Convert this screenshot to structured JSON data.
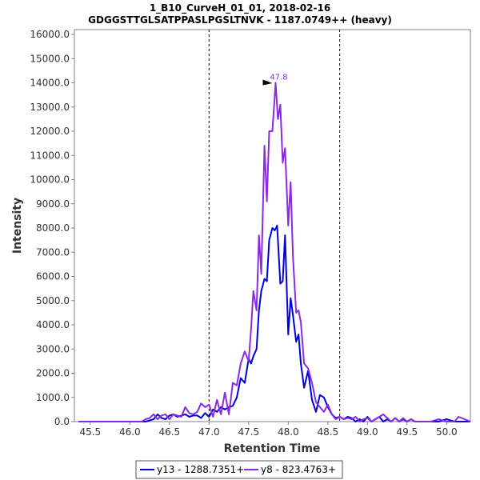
{
  "chart_data": {
    "type": "line",
    "title_lines": [
      "1_B10_CurveH_01_01, 2018-02-16",
      "GDGGSTTGLSATPPASLPGSLTNVK - 1187.0749++ (heavy)"
    ],
    "xlabel": "Retention Time",
    "ylabel": "Intensity",
    "xlim": [
      45.3,
      50.3
    ],
    "ylim": [
      0,
      16200
    ],
    "x_ticks": [
      "45.5",
      "46.0",
      "46.5",
      "47.0",
      "47.5",
      "48.0",
      "48.5",
      "49.0",
      "49.5",
      "50.0"
    ],
    "y_ticks": [
      "0.0",
      "1000.0",
      "2000.0",
      "3000.0",
      "4000.0",
      "5000.0",
      "6000.0",
      "7000.0",
      "8000.0",
      "9000.0",
      "10000.0",
      "11000.0",
      "12000.0",
      "13000.0",
      "14000.0",
      "15000.0",
      "16000.0"
    ],
    "grid": false,
    "legend_position": "bottom",
    "boundaries": [
      47.0,
      48.65
    ],
    "peak_annotation": {
      "x": 47.84,
      "y": 14000,
      "label": "47.8",
      "color": "#8A2BE2"
    },
    "series": [
      {
        "name": "y13 - 1288.7351+",
        "color": "#0000DD",
        "x": [
          45.35,
          46.2,
          46.3,
          46.35,
          46.4,
          46.45,
          46.5,
          46.55,
          46.6,
          46.65,
          46.7,
          46.75,
          46.8,
          46.85,
          46.9,
          46.95,
          47.0,
          47.05,
          47.1,
          47.15,
          47.2,
          47.25,
          47.3,
          47.35,
          47.4,
          47.45,
          47.5,
          47.53,
          47.56,
          47.6,
          47.63,
          47.66,
          47.7,
          47.73,
          47.76,
          47.8,
          47.83,
          47.86,
          47.9,
          47.93,
          47.96,
          48.0,
          48.03,
          48.06,
          48.1,
          48.13,
          48.16,
          48.2,
          48.25,
          48.3,
          48.35,
          48.4,
          48.45,
          48.5,
          48.55,
          48.6,
          48.65,
          48.7,
          48.75,
          48.8,
          48.85,
          48.9,
          48.95,
          49.0,
          49.05,
          49.1,
          49.15,
          49.2,
          49.25,
          49.3,
          49.35,
          49.4,
          49.45,
          49.5,
          49.55,
          49.6,
          49.7,
          49.8,
          49.9,
          50.0,
          50.1,
          50.15,
          50.3
        ],
        "values": [
          0,
          0,
          100,
          300,
          150,
          100,
          250,
          300,
          200,
          250,
          300,
          200,
          250,
          250,
          150,
          350,
          200,
          500,
          400,
          600,
          500,
          600,
          650,
          1000,
          1800,
          1600,
          2600,
          2400,
          2700,
          3000,
          4600,
          5400,
          5900,
          5800,
          7500,
          8000,
          7900,
          8100,
          5700,
          5800,
          7700,
          3600,
          5100,
          4400,
          3300,
          3600,
          2400,
          1400,
          2100,
          900,
          400,
          1100,
          1000,
          600,
          300,
          150,
          200,
          100,
          200,
          150,
          0,
          100,
          0,
          200,
          0,
          100,
          200,
          0,
          100,
          0,
          150,
          0,
          100,
          0,
          100,
          0,
          0,
          0,
          0,
          100,
          0,
          0,
          0
        ]
      },
      {
        "name": "y8 - 823.4763+",
        "color": "#8A2BE2",
        "x": [
          45.35,
          46.15,
          46.2,
          46.25,
          46.3,
          46.35,
          46.4,
          46.45,
          46.5,
          46.55,
          46.6,
          46.65,
          46.7,
          46.75,
          46.8,
          46.85,
          46.9,
          46.95,
          47.0,
          47.05,
          47.1,
          47.15,
          47.2,
          47.25,
          47.3,
          47.35,
          47.4,
          47.45,
          47.5,
          47.53,
          47.56,
          47.6,
          47.63,
          47.66,
          47.7,
          47.73,
          47.76,
          47.8,
          47.84,
          47.87,
          47.9,
          47.93,
          47.96,
          48.0,
          48.03,
          48.06,
          48.1,
          48.13,
          48.16,
          48.2,
          48.25,
          48.3,
          48.35,
          48.4,
          48.45,
          48.5,
          48.55,
          48.6,
          48.65,
          48.7,
          48.75,
          48.8,
          48.85,
          48.9,
          48.95,
          49.0,
          49.05,
          49.1,
          49.15,
          49.2,
          49.25,
          49.3,
          49.35,
          49.4,
          49.45,
          49.5,
          49.55,
          49.6,
          49.7,
          49.8,
          49.9,
          50.0,
          50.1,
          50.15,
          50.3
        ],
        "values": [
          0,
          0,
          100,
          150,
          300,
          100,
          250,
          300,
          100,
          300,
          250,
          200,
          600,
          350,
          300,
          400,
          750,
          600,
          700,
          200,
          900,
          300,
          1200,
          300,
          1600,
          1500,
          2400,
          2900,
          2500,
          3800,
          5400,
          4600,
          7700,
          6100,
          11400,
          9100,
          12000,
          12000,
          14000,
          12500,
          13100,
          10700,
          11300,
          8100,
          9900,
          6800,
          4500,
          4600,
          4100,
          2400,
          2200,
          1600,
          800,
          600,
          400,
          700,
          300,
          100,
          200,
          100,
          150,
          100,
          200,
          0,
          100,
          150,
          0,
          100,
          200,
          300,
          150,
          0,
          150,
          0,
          150,
          0,
          100,
          0,
          0,
          0,
          100,
          0,
          0,
          200,
          0
        ]
      }
    ]
  }
}
